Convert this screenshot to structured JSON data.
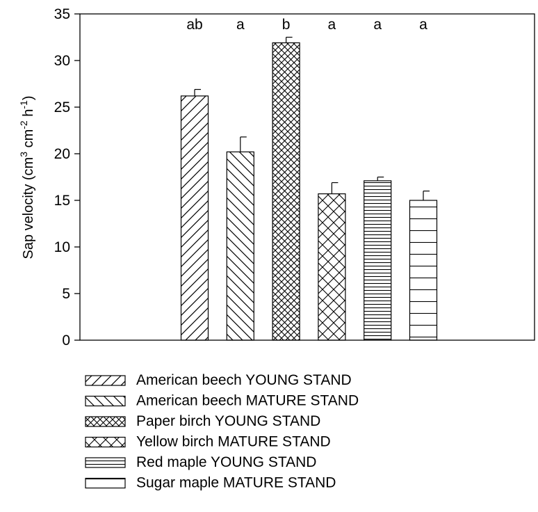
{
  "chart_data": {
    "type": "bar",
    "title": "",
    "xlabel": "",
    "ylabel": {
      "prefix": "Sap velocity (cm",
      "sup1": "3",
      "mid1": " cm",
      "sup2": "-2",
      "mid2": " h",
      "sup3": "-1",
      "suffix": ")"
    },
    "ylim": [
      0,
      35
    ],
    "yticks": [
      "0",
      "5",
      "10",
      "15",
      "20",
      "25",
      "30",
      "35"
    ],
    "grid": false,
    "legend_position": "bottom",
    "categories": [
      "American beech YOUNG STAND",
      "American beech MATURE STAND",
      "Paper birch YOUNG STAND",
      "Yellow birch MATURE STAND",
      "Red maple YOUNG STAND",
      "Sugar maple MATURE STAND"
    ],
    "values": [
      26.2,
      20.2,
      31.9,
      15.7,
      17.1,
      15.0
    ],
    "errors": [
      0.7,
      1.6,
      0.6,
      1.2,
      0.4,
      1.0
    ],
    "significance": [
      "ab",
      "a",
      "b",
      "a",
      "a",
      "a"
    ],
    "patterns": [
      "forward-diagonal",
      "backward-diagonal",
      "fine-crosshatch",
      "coarse-crosshatch",
      "fine-horizontal",
      "coarse-horizontal"
    ]
  }
}
